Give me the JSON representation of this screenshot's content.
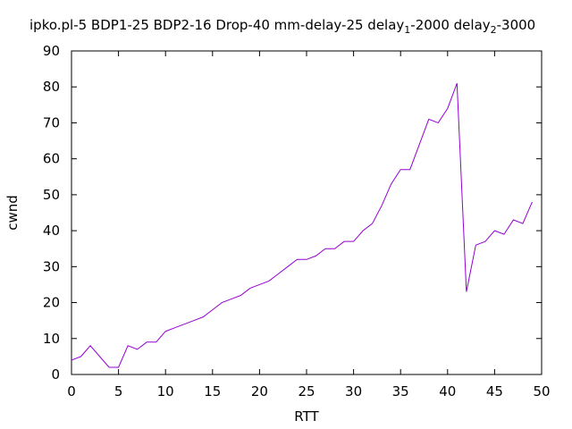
{
  "chart_data": {
    "type": "line",
    "title": {
      "prefix": "ipko.pl-5 BDP1-25 BDP2-16 Drop-40 mm-delay-25 delay",
      "sub1": "1",
      "mid": "-2000 delay",
      "sub2": "2",
      "suffix": "-3000"
    },
    "xlabel": "RTT",
    "ylabel": "cwnd",
    "xlim": [
      0,
      50
    ],
    "ylim": [
      0,
      90
    ],
    "xticks": [
      0,
      5,
      10,
      15,
      20,
      25,
      30,
      35,
      40,
      45,
      50
    ],
    "yticks": [
      0,
      10,
      20,
      30,
      40,
      50,
      60,
      70,
      80,
      90
    ],
    "grid": false,
    "legend": "none",
    "line_color": "#9400d3",
    "series": [
      {
        "x": [
          0,
          1,
          2,
          3,
          4,
          5,
          6,
          7,
          8,
          9,
          10,
          11,
          12,
          13,
          14,
          15,
          16,
          17,
          18,
          19,
          20,
          21,
          22,
          23,
          24,
          25,
          26,
          27,
          28,
          29,
          30,
          31,
          32,
          33,
          34,
          35,
          36,
          37,
          38,
          39,
          40,
          41,
          42,
          43,
          44,
          45,
          46,
          47,
          48,
          49
        ],
        "values": [
          4,
          5,
          8,
          5,
          2,
          2,
          8,
          7,
          9,
          9,
          12,
          13,
          14,
          15,
          16,
          18,
          20,
          21,
          22,
          24,
          25,
          26,
          28,
          30,
          32,
          32,
          33,
          35,
          35,
          37,
          37,
          40,
          42,
          47,
          53,
          57,
          57,
          64,
          71,
          70,
          74,
          81,
          23,
          36,
          37,
          40,
          39,
          43,
          42,
          48
        ]
      }
    ]
  }
}
